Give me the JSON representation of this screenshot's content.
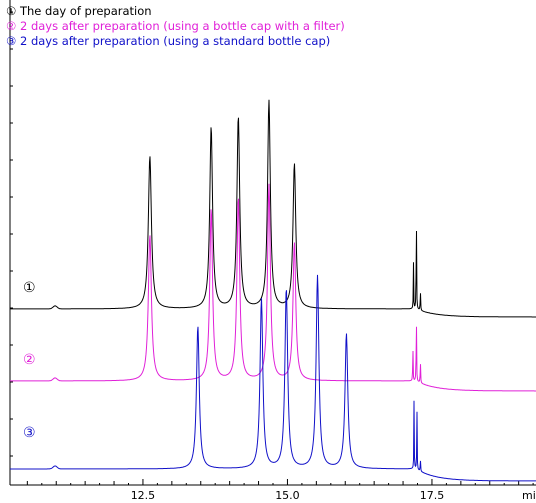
{
  "chart_data": {
    "type": "line",
    "title": "",
    "xlabel": "min",
    "ylabel": "",
    "xlim": [
      10.2,
      19.3
    ],
    "x_ticks": [
      "12.5",
      "15.0",
      "17.5"
    ],
    "x_tick_values": [
      12.5,
      15.0,
      17.5
    ],
    "grid": false,
    "legend_position": "top-left",
    "legend": [
      {
        "marker": "①",
        "text": "The day of preparation",
        "color": "#000000"
      },
      {
        "marker": "②",
        "text": "2 days after preparation (using a bottle cap with a filter)",
        "color": "#e020d8"
      },
      {
        "marker": "③",
        "text": "2 days after preparation (using a standard bottle cap)",
        "color": "#1010c8"
      }
    ],
    "series": [
      {
        "label": "①",
        "color": "#000000",
        "baseline": 0.0,
        "peaks": [
          {
            "x": 12.62,
            "height": 153,
            "width": 0.11
          },
          {
            "x": 13.68,
            "height": 182,
            "width": 0.1
          },
          {
            "x": 14.15,
            "height": 192,
            "width": 0.1
          },
          {
            "x": 14.68,
            "height": 208,
            "width": 0.1
          },
          {
            "x": 15.12,
            "height": 145,
            "width": 0.1
          },
          {
            "x": 17.18,
            "height": 48,
            "width": 0.012
          },
          {
            "x": 17.23,
            "height": 122,
            "width": 0.012
          },
          {
            "x": 17.3,
            "height": 20,
            "width": 0.015
          }
        ],
        "step": {
          "x": 17.22,
          "delta": -8
        }
      },
      {
        "label": "②",
        "color": "#e020d8",
        "baseline": -72,
        "peaks": [
          {
            "x": 12.62,
            "height": 146,
            "width": 0.11
          },
          {
            "x": 13.68,
            "height": 172,
            "width": 0.1
          },
          {
            "x": 14.15,
            "height": 183,
            "width": 0.1
          },
          {
            "x": 14.68,
            "height": 196,
            "width": 0.1
          },
          {
            "x": 15.12,
            "height": 138,
            "width": 0.1
          },
          {
            "x": 17.17,
            "height": 40,
            "width": 0.012
          },
          {
            "x": 17.23,
            "height": 85,
            "width": 0.012
          },
          {
            "x": 17.3,
            "height": 22,
            "width": 0.015
          }
        ],
        "step": {
          "x": 17.22,
          "delta": -10
        }
      },
      {
        "label": "③",
        "color": "#1010c8",
        "baseline": -145,
        "peaks": [
          {
            "x": 13.45,
            "height": 143,
            "width": 0.1
          },
          {
            "x": 14.55,
            "height": 170,
            "width": 0.1
          },
          {
            "x": 14.98,
            "height": 180,
            "width": 0.1
          },
          {
            "x": 15.52,
            "height": 193,
            "width": 0.1
          },
          {
            "x": 16.02,
            "height": 135,
            "width": 0.1
          },
          {
            "x": 17.19,
            "height": 70,
            "width": 0.012
          },
          {
            "x": 17.24,
            "height": 65,
            "width": 0.012
          },
          {
            "x": 17.3,
            "height": 12,
            "width": 0.015
          }
        ],
        "step": {
          "x": 17.22,
          "delta": -12
        }
      }
    ]
  }
}
